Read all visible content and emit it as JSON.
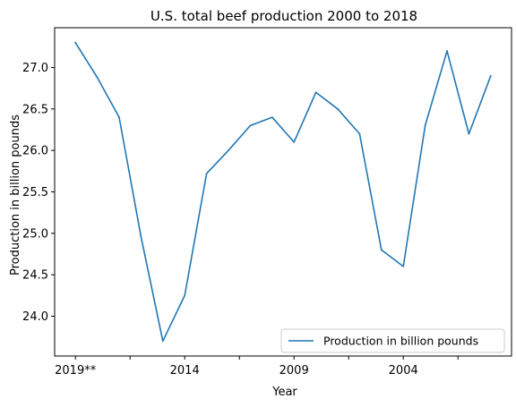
{
  "chart_data": {
    "type": "line",
    "title": "U.S. total beef production 2000 to 2018",
    "xlabel": "Year",
    "ylabel": "Production in billion pounds",
    "x_tick_labels": [
      "2019**",
      "",
      "2014",
      "",
      "2009",
      "",
      "2004",
      ""
    ],
    "x_tick_positions": [
      0,
      2.5,
      5,
      7.5,
      10,
      12.5,
      15,
      17.5
    ],
    "y_ticks": [
      24.0,
      24.5,
      25.0,
      25.5,
      26.0,
      26.5,
      27.0
    ],
    "y_tick_labels": [
      "24.0",
      "24.5",
      "25.0",
      "25.5",
      "26.0",
      "26.5",
      "27.0"
    ],
    "ylim": [
      23.52,
      27.48
    ],
    "xlim": [
      -0.95,
      19.95
    ],
    "grid": false,
    "legend_position": "lower-right",
    "series": [
      {
        "name": "Production in billion pounds",
        "color": "#1f77b4",
        "x": [
          0,
          1,
          2,
          3,
          4,
          5,
          6,
          7,
          8,
          9,
          10,
          11,
          12,
          13,
          14,
          15,
          16,
          17,
          18,
          19
        ],
        "values": [
          27.3,
          26.88,
          26.4,
          24.96,
          23.7,
          24.25,
          25.72,
          26.0,
          26.3,
          26.4,
          26.1,
          26.7,
          26.5,
          26.2,
          24.8,
          24.6,
          26.3,
          27.2,
          26.2,
          26.9
        ]
      }
    ]
  }
}
